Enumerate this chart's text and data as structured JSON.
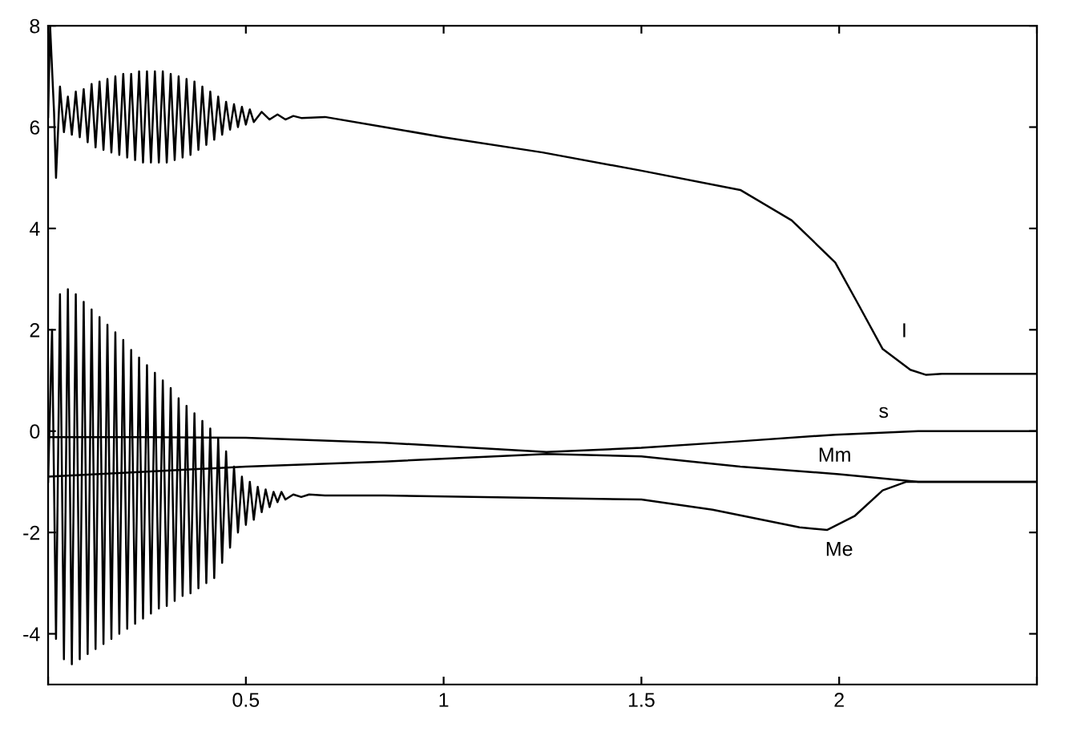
{
  "chart_data": {
    "type": "line",
    "xlim": [
      0,
      2.5
    ],
    "ylim": [
      -5,
      8
    ],
    "xticks": [
      {
        "value": 0,
        "label": null
      },
      0.5,
      1,
      1.5,
      2,
      {
        "value": 2.5,
        "label": null
      }
    ],
    "yticks": [
      -4,
      -2,
      0,
      2,
      4,
      6,
      8
    ],
    "grid": false,
    "legend": false,
    "series": [
      {
        "name": "I",
        "color": "#000000",
        "x": [
          0,
          0.005,
          0.015,
          0.02,
          0.03,
          0.04,
          0.05,
          0.06,
          0.07,
          0.08,
          0.09,
          0.1,
          0.11,
          0.12,
          0.13,
          0.14,
          0.15,
          0.16,
          0.17,
          0.18,
          0.19,
          0.2,
          0.21,
          0.22,
          0.23,
          0.24,
          0.25,
          0.26,
          0.27,
          0.28,
          0.29,
          0.3,
          0.31,
          0.32,
          0.33,
          0.34,
          0.35,
          0.36,
          0.37,
          0.38,
          0.39,
          0.4,
          0.41,
          0.42,
          0.43,
          0.44,
          0.45,
          0.46,
          0.47,
          0.48,
          0.49,
          0.5,
          0.51,
          0.52,
          0.54,
          0.56,
          0.58,
          0.6,
          0.62,
          0.64,
          0.7,
          0.85,
          1.0,
          1.25,
          1.5,
          1.75,
          1.88,
          1.99,
          2.05,
          2.11,
          2.18,
          2.22,
          2.26,
          2.5
        ],
        "values": [
          6.2,
          8.0,
          6.3,
          5.0,
          6.8,
          5.9,
          6.6,
          5.85,
          6.7,
          5.8,
          6.75,
          5.7,
          6.85,
          5.6,
          6.9,
          5.55,
          6.95,
          5.5,
          7.0,
          5.45,
          7.05,
          5.4,
          7.05,
          5.35,
          7.1,
          5.3,
          7.1,
          5.3,
          7.1,
          5.3,
          7.1,
          5.3,
          7.05,
          5.35,
          7.0,
          5.4,
          6.95,
          5.45,
          6.9,
          5.55,
          6.8,
          5.65,
          6.7,
          5.75,
          6.6,
          5.85,
          6.5,
          5.95,
          6.45,
          6.0,
          6.4,
          6.05,
          6.35,
          6.1,
          6.3,
          6.15,
          6.25,
          6.15,
          6.22,
          6.18,
          6.2,
          6.0,
          5.8,
          5.5,
          5.14,
          4.76,
          4.16,
          3.33,
          2.48,
          1.62,
          1.21,
          1.11,
          1.13,
          1.13
        ]
      },
      {
        "name": "s",
        "color": "#000000",
        "x": [
          0,
          0.25,
          0.5,
          0.85,
          1.26,
          1.5,
          1.75,
          1.99,
          2.2,
          2.5
        ],
        "values": [
          -0.12,
          -0.12,
          -0.13,
          -0.23,
          -0.41,
          -0.33,
          -0.2,
          -0.07,
          0.0,
          0.0
        ]
      },
      {
        "name": "Mm",
        "color": "#000000",
        "x": [
          0,
          0.25,
          0.5,
          0.85,
          1.26,
          1.5,
          1.75,
          2.0,
          2.2,
          2.5
        ],
        "values": [
          -0.9,
          -0.8,
          -0.7,
          -0.6,
          -0.45,
          -0.5,
          -0.7,
          -0.85,
          -1.0,
          -1.0
        ]
      },
      {
        "name": "Me",
        "color": "#000000",
        "x": [
          0,
          0.01,
          0.02,
          0.03,
          0.04,
          0.05,
          0.06,
          0.07,
          0.08,
          0.09,
          0.1,
          0.11,
          0.12,
          0.13,
          0.14,
          0.15,
          0.16,
          0.17,
          0.18,
          0.19,
          0.2,
          0.21,
          0.22,
          0.23,
          0.24,
          0.25,
          0.26,
          0.27,
          0.28,
          0.29,
          0.3,
          0.31,
          0.32,
          0.33,
          0.34,
          0.35,
          0.36,
          0.37,
          0.38,
          0.39,
          0.4,
          0.41,
          0.42,
          0.43,
          0.44,
          0.45,
          0.46,
          0.47,
          0.48,
          0.49,
          0.5,
          0.51,
          0.52,
          0.53,
          0.54,
          0.55,
          0.56,
          0.57,
          0.58,
          0.59,
          0.6,
          0.62,
          0.64,
          0.66,
          0.7,
          0.85,
          1.5,
          1.68,
          1.9,
          1.97,
          2.04,
          2.11,
          2.17,
          2.5
        ],
        "values": [
          -1.0,
          2.0,
          -4.1,
          2.7,
          -4.5,
          2.8,
          -4.6,
          2.7,
          -4.5,
          2.55,
          -4.4,
          2.4,
          -4.3,
          2.25,
          -4.2,
          2.1,
          -4.1,
          1.95,
          -4.0,
          1.8,
          -3.9,
          1.6,
          -3.8,
          1.45,
          -3.7,
          1.3,
          -3.6,
          1.15,
          -3.5,
          1.0,
          -3.45,
          0.85,
          -3.35,
          0.65,
          -3.25,
          0.5,
          -3.2,
          0.35,
          -3.1,
          0.2,
          -3.0,
          0.05,
          -2.9,
          -0.15,
          -2.6,
          -0.4,
          -2.3,
          -0.7,
          -2.0,
          -0.9,
          -1.85,
          -1.0,
          -1.75,
          -1.1,
          -1.6,
          -1.15,
          -1.5,
          -1.2,
          -1.4,
          -1.2,
          -1.35,
          -1.25,
          -1.3,
          -1.25,
          -1.27,
          -1.27,
          -1.35,
          -1.55,
          -1.9,
          -1.95,
          -1.67,
          -1.17,
          -1.0,
          -1.0
        ]
      }
    ]
  }
}
